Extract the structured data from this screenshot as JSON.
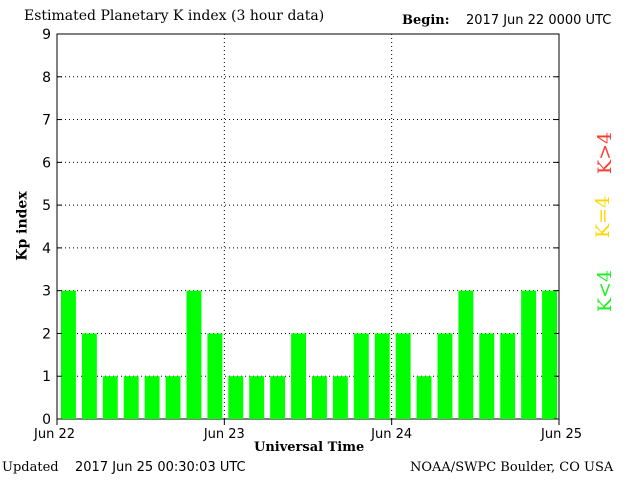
{
  "header": {
    "title": "Estimated Planetary K index (3 hour data)",
    "begin_label": "Begin:",
    "begin_value": "2017 Jun 22 0000 UTC"
  },
  "footer": {
    "updated_label": "Updated",
    "updated_value": "2017 Jun 25 00:30:03 UTC",
    "credit": "NOAA/SWPC Boulder, CO USA"
  },
  "legend": [
    {
      "label": "K>4",
      "color": "#ff3b2f"
    },
    {
      "label": "K=4",
      "color": "#ffd700"
    },
    {
      "label": "K<4",
      "color": "#22ee22"
    }
  ],
  "chart_data": {
    "type": "bar",
    "title": "Estimated Planetary K index (3 hour data)",
    "xlabel": "Universal Time",
    "ylabel": "Kp index",
    "ylim": [
      0,
      9
    ],
    "y_ticks": [
      "0",
      "1",
      "2",
      "3",
      "4",
      "5",
      "6",
      "7",
      "8",
      "9"
    ],
    "x_tick_labels": [
      "Jun 22",
      "Jun 23",
      "Jun 24",
      "Jun 25"
    ],
    "values": [
      3,
      2,
      1,
      1,
      1,
      1,
      3,
      2,
      1,
      1,
      1,
      2,
      1,
      1,
      2,
      2,
      2,
      1,
      2,
      3,
      2,
      2,
      3,
      3
    ],
    "bar_color": "#00ff00",
    "grid": true
  }
}
